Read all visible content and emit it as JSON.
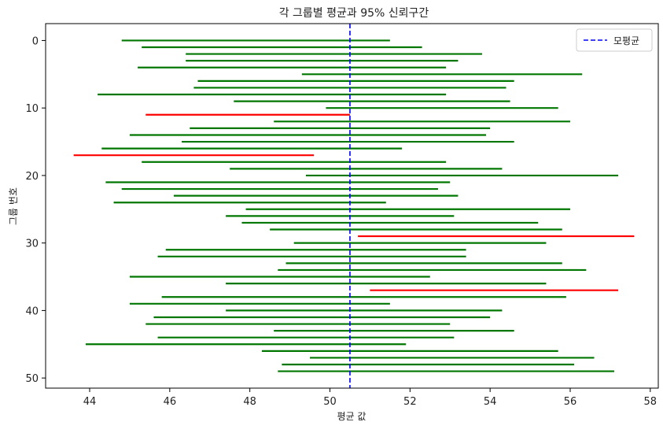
{
  "chart_data": {
    "type": "interval",
    "title": "각 그룹별 평균과 95% 신뢰구간",
    "xlabel": "평균 값",
    "ylabel": "그룹 번호",
    "xlim": [
      42.9,
      58.2
    ],
    "ylim": [
      51.5,
      -2.5
    ],
    "y_inverted": true,
    "xticks": [
      44,
      46,
      48,
      50,
      52,
      54,
      56,
      58
    ],
    "yticks": [
      0,
      10,
      20,
      30,
      40,
      50
    ],
    "grid": false,
    "reference_line": {
      "name": "모평균",
      "x": 50.5,
      "color": "#0000ff",
      "style": "dashed"
    },
    "legend": {
      "position": "top-right",
      "entries": [
        "모평균"
      ]
    },
    "colors": {
      "covers": "#007700",
      "misses": "#ff0000"
    },
    "intervals": [
      {
        "group": 0,
        "low": 44.8,
        "high": 51.5,
        "covers": true
      },
      {
        "group": 1,
        "low": 45.3,
        "high": 52.3,
        "covers": true
      },
      {
        "group": 2,
        "low": 46.4,
        "high": 53.8,
        "covers": true
      },
      {
        "group": 3,
        "low": 46.4,
        "high": 53.2,
        "covers": true
      },
      {
        "group": 4,
        "low": 45.2,
        "high": 52.9,
        "covers": true
      },
      {
        "group": 5,
        "low": 49.3,
        "high": 56.3,
        "covers": true
      },
      {
        "group": 6,
        "low": 46.7,
        "high": 54.6,
        "covers": true
      },
      {
        "group": 7,
        "low": 46.6,
        "high": 54.4,
        "covers": true
      },
      {
        "group": 8,
        "low": 44.2,
        "high": 52.9,
        "covers": true
      },
      {
        "group": 9,
        "low": 47.6,
        "high": 54.5,
        "covers": true
      },
      {
        "group": 10,
        "low": 49.9,
        "high": 55.7,
        "covers": true
      },
      {
        "group": 11,
        "low": 45.4,
        "high": 50.5,
        "covers": false
      },
      {
        "group": 12,
        "low": 48.6,
        "high": 56.0,
        "covers": true
      },
      {
        "group": 13,
        "low": 46.5,
        "high": 54.0,
        "covers": true
      },
      {
        "group": 14,
        "low": 45.0,
        "high": 53.9,
        "covers": true
      },
      {
        "group": 15,
        "low": 46.3,
        "high": 54.6,
        "covers": true
      },
      {
        "group": 16,
        "low": 44.3,
        "high": 51.8,
        "covers": true
      },
      {
        "group": 17,
        "low": 43.6,
        "high": 49.6,
        "covers": false
      },
      {
        "group": 18,
        "low": 45.3,
        "high": 52.9,
        "covers": true
      },
      {
        "group": 19,
        "low": 47.5,
        "high": 54.3,
        "covers": true
      },
      {
        "group": 20,
        "low": 49.4,
        "high": 57.2,
        "covers": true
      },
      {
        "group": 21,
        "low": 44.4,
        "high": 53.0,
        "covers": true
      },
      {
        "group": 22,
        "low": 44.8,
        "high": 52.7,
        "covers": true
      },
      {
        "group": 23,
        "low": 46.1,
        "high": 53.2,
        "covers": true
      },
      {
        "group": 24,
        "low": 44.6,
        "high": 51.4,
        "covers": true
      },
      {
        "group": 25,
        "low": 47.9,
        "high": 56.0,
        "covers": true
      },
      {
        "group": 26,
        "low": 47.4,
        "high": 53.1,
        "covers": true
      },
      {
        "group": 27,
        "low": 47.8,
        "high": 55.2,
        "covers": true
      },
      {
        "group": 28,
        "low": 48.5,
        "high": 55.8,
        "covers": true
      },
      {
        "group": 29,
        "low": 50.7,
        "high": 57.6,
        "covers": false
      },
      {
        "group": 30,
        "low": 49.1,
        "high": 55.4,
        "covers": true
      },
      {
        "group": 31,
        "low": 45.9,
        "high": 53.4,
        "covers": true
      },
      {
        "group": 32,
        "low": 45.7,
        "high": 53.4,
        "covers": true
      },
      {
        "group": 33,
        "low": 48.9,
        "high": 55.8,
        "covers": true
      },
      {
        "group": 34,
        "low": 48.7,
        "high": 56.4,
        "covers": true
      },
      {
        "group": 35,
        "low": 45.0,
        "high": 52.5,
        "covers": true
      },
      {
        "group": 36,
        "low": 47.4,
        "high": 55.4,
        "covers": true
      },
      {
        "group": 37,
        "low": 51.0,
        "high": 57.2,
        "covers": false
      },
      {
        "group": 38,
        "low": 45.8,
        "high": 55.9,
        "covers": true
      },
      {
        "group": 39,
        "low": 45.0,
        "high": 51.5,
        "covers": true
      },
      {
        "group": 40,
        "low": 47.4,
        "high": 54.3,
        "covers": true
      },
      {
        "group": 41,
        "low": 45.6,
        "high": 54.0,
        "covers": true
      },
      {
        "group": 42,
        "low": 45.4,
        "high": 53.0,
        "covers": true
      },
      {
        "group": 43,
        "low": 48.6,
        "high": 54.6,
        "covers": true
      },
      {
        "group": 44,
        "low": 45.7,
        "high": 53.1,
        "covers": true
      },
      {
        "group": 45,
        "low": 43.9,
        "high": 51.9,
        "covers": true
      },
      {
        "group": 46,
        "low": 48.3,
        "high": 55.7,
        "covers": true
      },
      {
        "group": 47,
        "low": 49.5,
        "high": 56.6,
        "covers": true
      },
      {
        "group": 48,
        "low": 48.8,
        "high": 56.1,
        "covers": true
      },
      {
        "group": 49,
        "low": 48.7,
        "high": 57.1,
        "covers": true
      }
    ]
  }
}
